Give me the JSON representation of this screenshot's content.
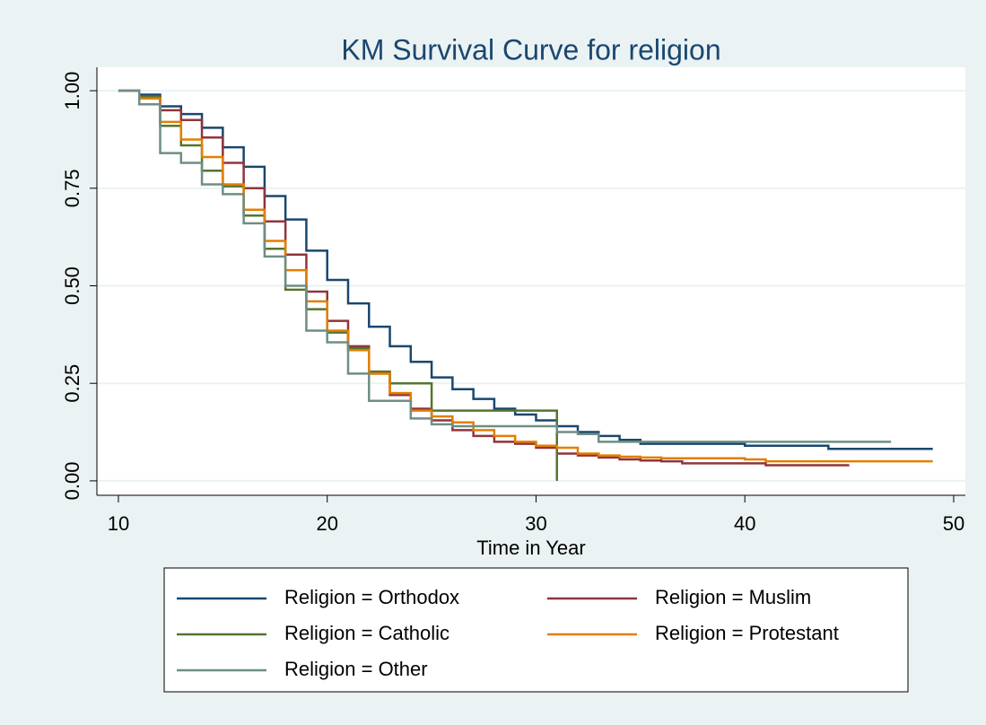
{
  "chart_data": {
    "type": "step",
    "title": "KM Survival Curve for religion",
    "x_label": "Time in Year",
    "x": [
      10,
      11,
      12,
      13,
      14,
      15,
      16,
      17,
      18,
      19,
      20,
      21,
      22,
      23,
      24,
      25,
      26,
      27,
      28,
      29,
      30,
      31,
      32,
      33,
      34,
      35,
      36,
      37,
      38,
      39,
      40,
      41,
      42,
      43,
      44,
      45,
      46,
      47,
      48,
      49
    ],
    "series": [
      {
        "name": "Religion = Orthodox",
        "color": "#1a476f",
        "values": [
          1,
          0.99,
          0.96,
          0.94,
          0.905,
          0.855,
          0.805,
          0.73,
          0.67,
          0.59,
          0.515,
          0.455,
          0.395,
          0.345,
          0.305,
          0.265,
          0.235,
          0.21,
          0.185,
          0.17,
          0.155,
          0.14,
          0.125,
          0.115,
          0.105,
          0.095,
          0.095,
          0.095,
          0.095,
          0.095,
          0.09,
          0.09,
          0.09,
          0.09,
          0.082,
          0.082,
          0.082,
          0.082,
          0.082,
          0.082
        ]
      },
      {
        "name": "Religion = Muslim",
        "color": "#90353b",
        "values": [
          1,
          0.985,
          0.95,
          0.925,
          0.88,
          0.815,
          0.75,
          0.665,
          0.58,
          0.485,
          0.41,
          0.345,
          0.275,
          0.22,
          0.185,
          0.155,
          0.13,
          0.115,
          0.1,
          0.095,
          0.085,
          0.07,
          0.065,
          0.06,
          0.055,
          0.052,
          0.05,
          0.045,
          0.045,
          0.045,
          0.045,
          0.04,
          0.04,
          0.04,
          0.04,
          0.04,
          null,
          null,
          null,
          null
        ]
      },
      {
        "name": "Religion = Catholic",
        "color": "#55752f",
        "values": [
          1,
          0.985,
          0.91,
          0.86,
          0.795,
          0.755,
          0.68,
          0.595,
          0.49,
          0.44,
          0.38,
          0.34,
          0.28,
          0.25,
          0.25,
          0.18,
          0.18,
          0.18,
          0.18,
          0.18,
          0.18,
          0,
          null,
          null,
          null,
          null,
          null,
          null,
          null,
          null,
          null,
          null,
          null,
          null,
          null,
          null,
          null,
          null,
          null,
          null
        ]
      },
      {
        "name": "Religion = Protestant",
        "color": "#e37e00",
        "values": [
          1,
          0.98,
          0.92,
          0.875,
          0.83,
          0.76,
          0.695,
          0.615,
          0.54,
          0.46,
          0.385,
          0.335,
          0.275,
          0.225,
          0.18,
          0.165,
          0.15,
          0.13,
          0.115,
          0.1,
          0.09,
          0.085,
          0.07,
          0.065,
          0.062,
          0.06,
          0.058,
          0.058,
          0.058,
          0.058,
          0.055,
          0.05,
          0.05,
          0.05,
          0.05,
          0.05,
          0.05,
          0.05,
          0.05,
          0.05
        ]
      },
      {
        "name": "Religion = Other",
        "color": "#6e8e84",
        "values": [
          1,
          0.965,
          0.84,
          0.815,
          0.76,
          0.735,
          0.66,
          0.575,
          0.5,
          0.385,
          0.355,
          0.275,
          0.205,
          0.205,
          0.16,
          0.145,
          0.14,
          0.14,
          0.14,
          0.14,
          0.14,
          0.125,
          0.12,
          0.1,
          0.1,
          0.1,
          0.1,
          0.1,
          0.1,
          0.1,
          0.1,
          0.1,
          0.1,
          0.1,
          0.1,
          0.1,
          0.1,
          0.1,
          null,
          null
        ]
      }
    ],
    "xlim": [
      8.97,
      50.56
    ],
    "ylim": [
      -0.037,
      1.06
    ],
    "xticks": [
      10,
      20,
      30,
      40,
      50
    ],
    "yticks": [
      {
        "value": 0,
        "label": "0.00"
      },
      {
        "value": 0.25,
        "label": "0.25"
      },
      {
        "value": 0.5,
        "label": "0.50"
      },
      {
        "value": 0.75,
        "label": "0.75"
      },
      {
        "value": 1,
        "label": "1.00"
      }
    ],
    "grid": true,
    "legend": "bottom"
  }
}
